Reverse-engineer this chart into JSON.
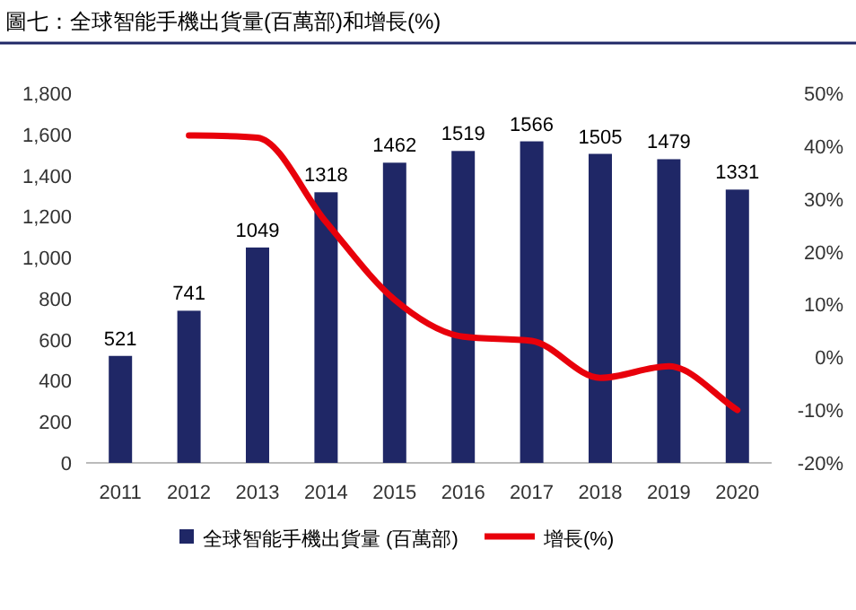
{
  "chart_data": {
    "type": "bar",
    "title": "圖七：全球智能手機出貨量(百萬部)和增長(%)",
    "categories": [
      "2011",
      "2012",
      "2013",
      "2014",
      "2015",
      "2016",
      "2017",
      "2018",
      "2019",
      "2020"
    ],
    "series": [
      {
        "name": "全球智能手機出貨量 (百萬部)",
        "color": "#1f2766",
        "values": [
          521,
          741,
          1049,
          1318,
          1462,
          1519,
          1566,
          1505,
          1479,
          1331
        ],
        "value_labels": [
          "521",
          "741",
          "1049",
          "1318",
          "1462",
          "1519",
          "1566",
          "1505",
          "1479",
          "1331"
        ]
      },
      {
        "name": "增長(%)",
        "type": "line",
        "axis": "y2",
        "color": "#e8000b",
        "values": [
          null,
          42,
          41.6,
          25.6,
          10.9,
          3.9,
          3.1,
          -3.9,
          -1.7,
          -10
        ]
      }
    ],
    "ylim": [
      0,
      1800
    ],
    "yticks": [
      {
        "value": 0,
        "label": "0"
      },
      {
        "value": 200,
        "label": "200"
      },
      {
        "value": 400,
        "label": "400"
      },
      {
        "value": 600,
        "label": "600"
      },
      {
        "value": 800,
        "label": "800"
      },
      {
        "value": 1000,
        "label": "1,000"
      },
      {
        "value": 1200,
        "label": "1,200"
      },
      {
        "value": 1400,
        "label": "1,400"
      },
      {
        "value": 1600,
        "label": "1,600"
      },
      {
        "value": 1800,
        "label": "1,800"
      }
    ],
    "y2lim": [
      -20,
      50
    ],
    "y2ticks": [
      {
        "value": -20,
        "label": "-20%"
      },
      {
        "value": -10,
        "label": "-10%"
      },
      {
        "value": 0,
        "label": "0%"
      },
      {
        "value": 10,
        "label": "10%"
      },
      {
        "value": 20,
        "label": "20%"
      },
      {
        "value": 30,
        "label": "30%"
      },
      {
        "value": 40,
        "label": "40%"
      },
      {
        "value": 50,
        "label": "50%"
      }
    ],
    "legend": "bottom",
    "marker": "none",
    "line_style": "solid",
    "grid": false
  }
}
